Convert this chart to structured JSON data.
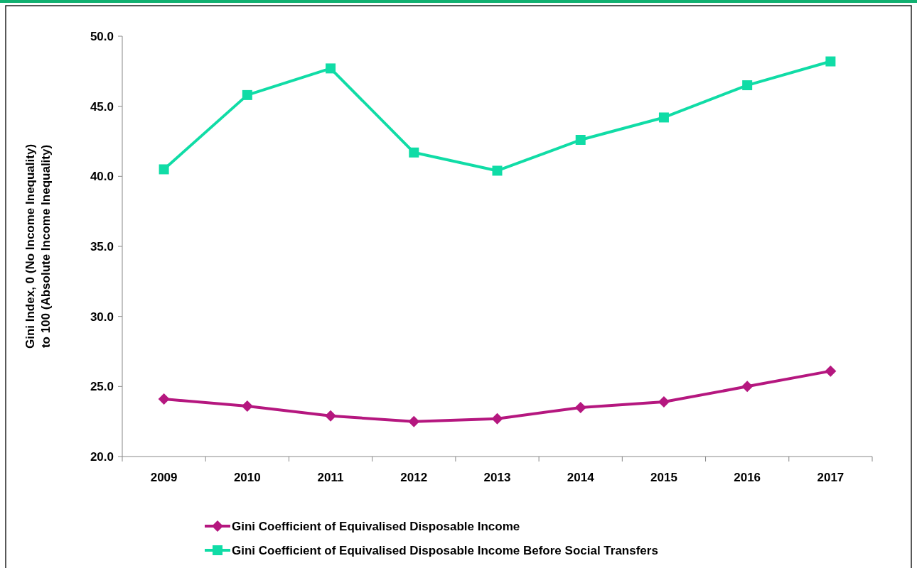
{
  "chart_data": {
    "type": "line",
    "ylabel": "Gini Index, 0 (No Income Inequality) to 100 (Absolute Income Inequality)",
    "categories": [
      "2009",
      "2010",
      "2011",
      "2012",
      "2013",
      "2014",
      "2015",
      "2016",
      "2017"
    ],
    "series": [
      {
        "name": "Gini Coefficient of Equivalised Disposable Income",
        "color": "#b5177f",
        "marker": "diamond",
        "values": [
          24.1,
          23.6,
          22.9,
          22.5,
          22.7,
          23.5,
          23.9,
          25.0,
          26.1
        ]
      },
      {
        "name": "Gini Coefficient of Equivalised Disposable Income Before Social Transfers",
        "color": "#10dca6",
        "marker": "square",
        "values": [
          40.5,
          45.8,
          47.7,
          41.7,
          40.4,
          42.6,
          44.2,
          46.5,
          48.2
        ]
      }
    ],
    "ylim": [
      20,
      50
    ],
    "yticks": [
      {
        "value": 20,
        "label": "20.0"
      },
      {
        "value": 25,
        "label": "25.0"
      },
      {
        "value": 30,
        "label": "30.0"
      },
      {
        "value": 35,
        "label": "35.0"
      },
      {
        "value": 40,
        "label": "40.0"
      },
      {
        "value": 45,
        "label": "45.0"
      },
      {
        "value": 50,
        "label": "50.0"
      }
    ],
    "grid": false,
    "legend": "bottom",
    "line_style": "solid"
  }
}
